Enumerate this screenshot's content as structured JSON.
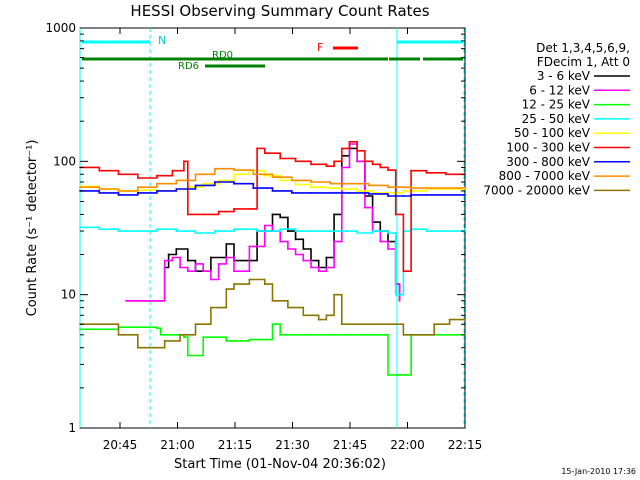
{
  "chart_data": {
    "type": "line",
    "title": "HESSI Observing Summary Count Rates",
    "xlabel": "Start Time (01-Nov-04 20:36:02)",
    "ylabel": "Count Rate (s⁻¹ detector⁻¹)",
    "yscale": "log",
    "ylim": [
      1,
      1000
    ],
    "xlim_minutes_after_start": [
      0,
      100
    ],
    "x_tick_labels": [
      "20:45",
      "21:00",
      "21:15",
      "21:30",
      "21:45",
      "22:00",
      "22:15"
    ],
    "y_tick_labels": [
      "1",
      "10",
      "100",
      "1000"
    ],
    "legend_position": "right",
    "legend_header": [
      "Det 1,3,4,5,6,9,",
      "FDecim 1, Att 0"
    ],
    "timestamp": "15-Jan-2010 17:36",
    "annotations": {
      "N": "N",
      "RD0": "RD0",
      "RD6": "RD6",
      "F": "F"
    },
    "series": [
      {
        "name": "3 - 6 keV",
        "color": "#000000",
        "x": [
          12,
          22,
          23,
          25,
          28,
          30,
          34,
          38,
          40,
          46,
          50,
          52,
          54,
          56,
          58,
          60,
          62,
          64,
          66,
          68,
          70,
          72,
          74,
          76,
          78,
          80,
          82,
          83
        ],
        "y": [
          9,
          16,
          20,
          22,
          18,
          15,
          19,
          24,
          18,
          30,
          40,
          38,
          30,
          26,
          22,
          18,
          16,
          19,
          40,
          110,
          125,
          100,
          55,
          35,
          30,
          25,
          12,
          9
        ]
      },
      {
        "name": "6 - 12 keV",
        "color": "#ff00ff",
        "x": [
          12,
          14,
          16,
          18,
          20,
          22,
          24,
          26,
          28,
          30,
          32,
          34,
          36,
          38,
          40,
          44,
          48,
          50,
          52,
          54,
          56,
          58,
          60,
          62,
          64,
          66,
          68,
          70,
          72,
          74,
          76,
          78,
          80,
          82,
          83
        ],
        "y": [
          9,
          9,
          9,
          9,
          9,
          18,
          19,
          16,
          15,
          17,
          15,
          13,
          17,
          19,
          15,
          23,
          33,
          30,
          25,
          22,
          20,
          18,
          16,
          15,
          16,
          25,
          90,
          135,
          100,
          45,
          30,
          25,
          22,
          12,
          9
        ]
      },
      {
        "name": "12 - 25 keV",
        "color": "#00ff00",
        "x": [
          0,
          10,
          20,
          21,
          27,
          28,
          32,
          38,
          40,
          44,
          50,
          52,
          60,
          66,
          70,
          74,
          78,
          80,
          83,
          86,
          90,
          100
        ],
        "y": [
          5.5,
          5.7,
          5.6,
          5,
          4.8,
          3.5,
          4.8,
          4.5,
          4.5,
          4.6,
          6,
          5,
          5,
          5,
          5,
          5,
          5,
          2.5,
          2.5,
          5,
          5,
          5
        ]
      },
      {
        "name": "25 - 50 keV",
        "color": "#00ffff",
        "x": [
          0,
          5,
          10,
          15,
          20,
          25,
          30,
          35,
          40,
          42,
          46,
          52,
          56,
          60,
          64,
          68,
          72,
          76,
          80,
          82,
          84,
          86,
          90,
          100
        ],
        "y": [
          32,
          31,
          30,
          30,
          31,
          30,
          29,
          30,
          31,
          31,
          30,
          31,
          30,
          30,
          30,
          30,
          29,
          30,
          29,
          10,
          30,
          31,
          30,
          31
        ]
      },
      {
        "name": "50 - 100 keV",
        "color": "#ffff00",
        "x": [
          0,
          5,
          10,
          15,
          20,
          25,
          28,
          32,
          36,
          40,
          44,
          48,
          52,
          56,
          60,
          64,
          68,
          72,
          76,
          80,
          84,
          86,
          90,
          100
        ],
        "y": [
          65,
          62,
          60,
          61,
          60,
          62,
          64,
          68,
          72,
          80,
          85,
          78,
          72,
          67,
          64,
          63,
          62,
          60,
          58,
          58,
          60,
          60,
          62,
          62
        ]
      },
      {
        "name": "100 - 300 keV",
        "color": "#ff0000",
        "x": [
          0,
          5,
          10,
          15,
          20,
          24,
          27,
          28,
          32,
          36,
          40,
          44,
          46,
          48,
          52,
          56,
          60,
          64,
          66,
          68,
          70,
          72,
          74,
          76,
          78,
          80,
          82,
          84,
          86,
          90,
          95,
          100
        ],
        "y": [
          90,
          85,
          80,
          75,
          78,
          85,
          100,
          40,
          40,
          42,
          44,
          44,
          125,
          115,
          105,
          100,
          95,
          92,
          100,
          125,
          140,
          120,
          100,
          95,
          90,
          86,
          40,
          15,
          85,
          82,
          80,
          80
        ]
      },
      {
        "name": "300 - 800 keV",
        "color": "#0000ff",
        "x": [
          0,
          5,
          10,
          15,
          20,
          25,
          30,
          35,
          40,
          45,
          50,
          55,
          60,
          65,
          70,
          75,
          80,
          84,
          86,
          90,
          100
        ],
        "y": [
          60,
          58,
          56,
          58,
          60,
          62,
          66,
          70,
          68,
          63,
          60,
          58,
          58,
          58,
          58,
          57,
          55,
          55,
          56,
          56,
          56
        ]
      },
      {
        "name": "800 - 7000 keV",
        "color": "#ff8c00",
        "x": [
          0,
          5,
          10,
          15,
          20,
          25,
          30,
          35,
          40,
          45,
          50,
          55,
          60,
          65,
          70,
          75,
          80,
          84,
          86,
          90,
          100
        ],
        "y": [
          64,
          62,
          60,
          64,
          68,
          72,
          80,
          88,
          86,
          80,
          76,
          72,
          70,
          68,
          68,
          66,
          64,
          64,
          63,
          63,
          63
        ]
      },
      {
        "name": "7000 - 20000 keV",
        "color": "#8b7500",
        "x": [
          0,
          6,
          10,
          15,
          20,
          22,
          26,
          30,
          34,
          38,
          40,
          44,
          48,
          50,
          54,
          58,
          62,
          64,
          66,
          68,
          72,
          76,
          80,
          84,
          88,
          92,
          96,
          100
        ],
        "y": [
          6,
          6,
          5,
          4,
          4,
          4.5,
          5,
          6,
          8,
          11,
          12,
          13,
          12,
          9,
          8,
          7,
          6.5,
          7,
          10,
          6,
          6,
          6,
          6,
          5,
          5,
          6,
          6.5,
          6.5
        ]
      }
    ]
  }
}
